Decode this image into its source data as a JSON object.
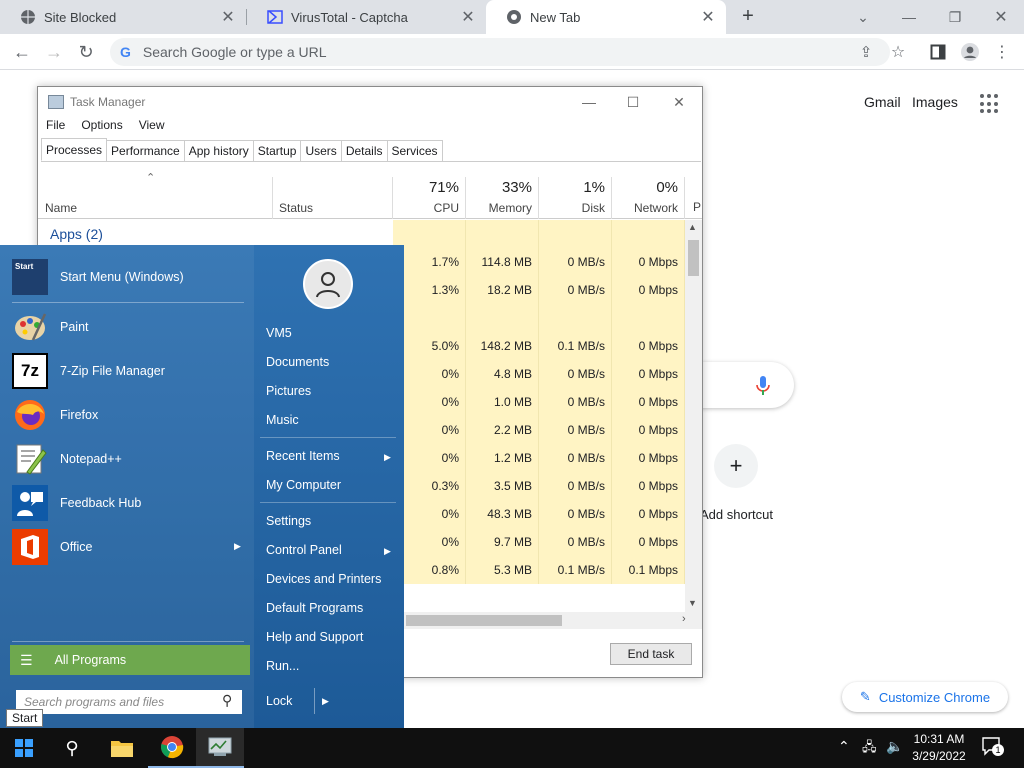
{
  "browser": {
    "tabs": [
      {
        "title": "Site Blocked",
        "icon": "globe-icon"
      },
      {
        "title": "VirusTotal - Captcha",
        "icon": "virustotal-icon"
      },
      {
        "title": "New Tab",
        "icon": "chrome-icon"
      }
    ],
    "new_tab_symbol": "+",
    "omnibox_placeholder": "Search Google or type a URL",
    "ntp": {
      "gmail": "Gmail",
      "images": "Images",
      "add_shortcut": "Add shortcut",
      "customize": "Customize Chrome"
    }
  },
  "task_manager": {
    "title": "Task Manager",
    "menu": [
      "File",
      "Options",
      "View"
    ],
    "tabs": [
      "Processes",
      "Performance",
      "App history",
      "Startup",
      "Users",
      "Details",
      "Services"
    ],
    "active_tab": "Processes",
    "columns": {
      "name": "Name",
      "status": "Status",
      "cpu": {
        "pct": "71%",
        "label": "CPU"
      },
      "memory": {
        "pct": "33%",
        "label": "Memory"
      },
      "disk": {
        "pct": "1%",
        "label": "Disk"
      },
      "network": {
        "pct": "0%",
        "label": "Network"
      },
      "overflow": "P"
    },
    "group_label": "Apps (2)",
    "rows": [
      {
        "cpu": "1.7%",
        "memory": "114.8 MB",
        "disk": "0 MB/s",
        "network": "0 Mbps"
      },
      {
        "cpu": "1.3%",
        "memory": "18.2 MB",
        "disk": "0 MB/s",
        "network": "0 Mbps"
      },
      {
        "cpu": "",
        "memory": "",
        "disk": "",
        "network": ""
      },
      {
        "cpu": "5.0%",
        "memory": "148.2 MB",
        "disk": "0.1 MB/s",
        "network": "0 Mbps"
      },
      {
        "cpu": "0%",
        "memory": "4.8 MB",
        "disk": "0 MB/s",
        "network": "0 Mbps"
      },
      {
        "cpu": "0%",
        "memory": "1.0 MB",
        "disk": "0 MB/s",
        "network": "0 Mbps"
      },
      {
        "cpu": "0%",
        "memory": "2.2 MB",
        "disk": "0 MB/s",
        "network": "0 Mbps"
      },
      {
        "cpu": "0%",
        "memory": "1.2 MB",
        "disk": "0 MB/s",
        "network": "0 Mbps"
      },
      {
        "cpu": "0.3%",
        "memory": "3.5 MB",
        "disk": "0 MB/s",
        "network": "0 Mbps"
      },
      {
        "cpu": "0%",
        "memory": "48.3 MB",
        "disk": "0 MB/s",
        "network": "0 Mbps"
      },
      {
        "cpu": "0%",
        "memory": "9.7 MB",
        "disk": "0 MB/s",
        "network": "0 Mbps"
      },
      {
        "cpu": "0.8%",
        "memory": "5.3 MB",
        "disk": "0.1 MB/s",
        "network": "0.1 Mbps"
      }
    ],
    "end_task": "End task"
  },
  "start_menu": {
    "programs": [
      {
        "label": "Start Menu (Windows)",
        "icon": "start-menu-icon"
      },
      {
        "label": "Paint",
        "icon": "paint-icon"
      },
      {
        "label": "7-Zip File Manager",
        "icon": "7zip-icon"
      },
      {
        "label": "Firefox",
        "icon": "firefox-icon"
      },
      {
        "label": "Notepad++",
        "icon": "notepadpp-icon"
      },
      {
        "label": "Feedback Hub",
        "icon": "feedback-hub-icon"
      },
      {
        "label": "Office",
        "icon": "office-icon"
      }
    ],
    "all_programs": "All Programs",
    "search_placeholder": "Search programs and files",
    "places": {
      "user": "VM5",
      "documents": "Documents",
      "pictures": "Pictures",
      "music": "Music",
      "recent": "Recent Items",
      "computer": "My Computer",
      "settings": "Settings",
      "control_panel": "Control Panel",
      "devices": "Devices and Printers",
      "default_programs": "Default Programs",
      "help": "Help and Support",
      "run": "Run..."
    },
    "lock": "Lock",
    "tooltip": "Start"
  },
  "taskbar": {
    "time": "10:31 AM",
    "date": "3/29/2022",
    "notification_count": "1"
  },
  "colors": {
    "start_menu_blue": "#2c6ead",
    "all_programs_green": "#6ea84e",
    "heat_yellow": "#fff4c4",
    "chrome_blue": "#1a73e8"
  }
}
